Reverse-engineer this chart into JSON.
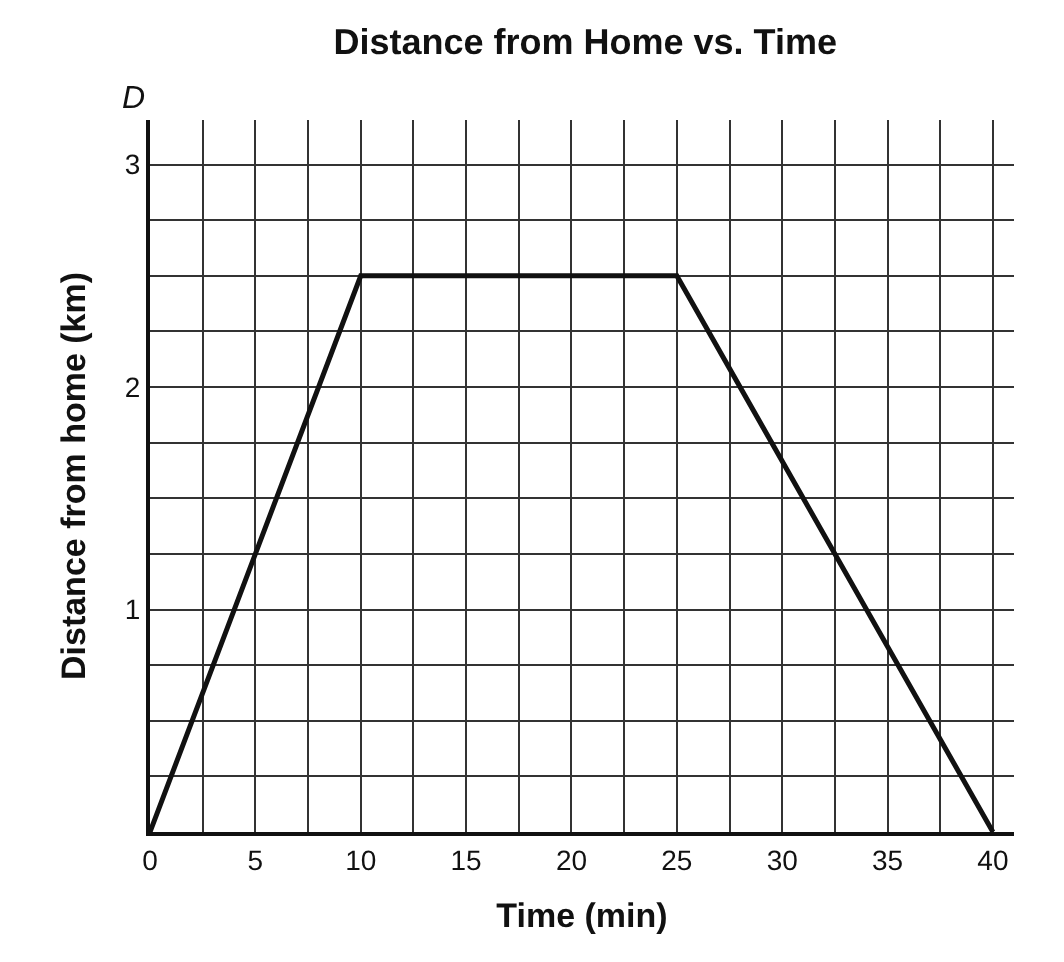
{
  "chart_data": {
    "type": "line",
    "title": "Distance from Home vs. Time",
    "xlabel": "Time (min)",
    "ylabel": "Distance from home (km)",
    "annotations": [
      "D"
    ],
    "x": [
      0,
      10,
      25,
      40
    ],
    "series": [
      {
        "color": "#111111",
        "values": [
          0,
          2.5,
          2.5,
          0
        ]
      }
    ],
    "xlim": [
      0,
      41
    ],
    "ylim": [
      0,
      3.2
    ],
    "xticks": [
      0,
      {
        "value": 2.5,
        "label": null
      },
      5,
      {
        "value": 7.5,
        "label": null
      },
      10,
      {
        "value": 12.5,
        "label": null
      },
      15,
      {
        "value": 17.5,
        "label": null
      },
      20,
      {
        "value": 22.5,
        "label": null
      },
      25,
      {
        "value": 27.5,
        "label": null
      },
      30,
      {
        "value": 32.5,
        "label": null
      },
      35,
      {
        "value": 37.5,
        "label": null
      },
      40
    ],
    "yticks": [
      {
        "value": 0,
        "label": null
      },
      {
        "value": 0.25,
        "label": null
      },
      {
        "value": 0.5,
        "label": null
      },
      {
        "value": 0.75,
        "label": null
      },
      1,
      {
        "value": 1.25,
        "label": null
      },
      {
        "value": 1.5,
        "label": null
      },
      {
        "value": 1.75,
        "label": null
      },
      2,
      {
        "value": 2.25,
        "label": null
      },
      {
        "value": 2.5,
        "label": null
      },
      {
        "value": 2.75,
        "label": null
      },
      3
    ],
    "grid": true,
    "marker": "none",
    "line_style": "solid"
  }
}
